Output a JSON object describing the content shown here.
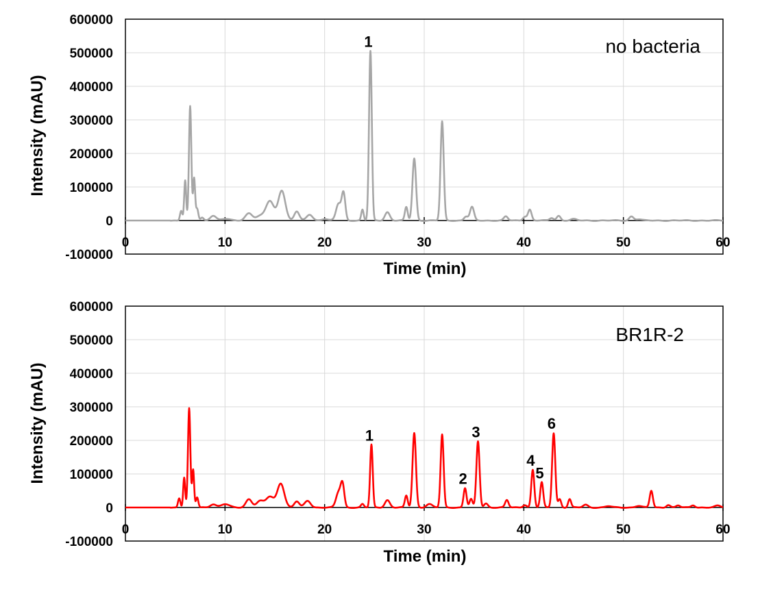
{
  "chart_data": [
    {
      "type": "line",
      "title": "no bacteria",
      "xlabel": "Time (min)",
      "ylabel": "Intensity (mAU)",
      "xlim": [
        0,
        60
      ],
      "ylim": [
        -100000,
        600000
      ],
      "x_ticks": [
        "0",
        "10",
        "20",
        "30",
        "40",
        "50",
        "60"
      ],
      "y_ticks": [
        "600000",
        "500000",
        "400000",
        "300000",
        "200000",
        "100000",
        "0",
        "-100000"
      ],
      "grid": true,
      "color": "#a6a6a6",
      "peaks": [
        [
          5.6,
          30000,
          0.12
        ],
        [
          6.0,
          120000,
          0.1
        ],
        [
          6.5,
          340000,
          0.12
        ],
        [
          6.9,
          125000,
          0.1
        ],
        [
          7.2,
          35000,
          0.12
        ],
        [
          7.7,
          8000,
          0.15
        ],
        [
          8.8,
          15000,
          0.3
        ],
        [
          10.0,
          5000,
          0.4
        ],
        [
          12.4,
          22000,
          0.35
        ],
        [
          13.5,
          12000,
          0.4
        ],
        [
          14.5,
          58000,
          0.4
        ],
        [
          15.7,
          90000,
          0.35
        ],
        [
          17.2,
          27000,
          0.25
        ],
        [
          18.5,
          18000,
          0.3
        ],
        [
          20.0,
          5000,
          0.3
        ],
        [
          21.4,
          50000,
          0.25
        ],
        [
          21.9,
          80000,
          0.18
        ],
        [
          23.8,
          32000,
          0.12
        ],
        [
          24.6,
          505000,
          0.14
        ],
        [
          26.3,
          25000,
          0.25
        ],
        [
          28.2,
          40000,
          0.14
        ],
        [
          29.0,
          185000,
          0.18
        ],
        [
          31.8,
          295000,
          0.16
        ],
        [
          34.2,
          12000,
          0.2
        ],
        [
          34.8,
          40000,
          0.2
        ],
        [
          38.2,
          12000,
          0.2
        ],
        [
          40.1,
          12000,
          0.2
        ],
        [
          40.6,
          32000,
          0.18
        ],
        [
          42.8,
          8000,
          0.2
        ],
        [
          43.5,
          14000,
          0.2
        ],
        [
          45.0,
          4000,
          0.3
        ],
        [
          50.8,
          12000,
          0.22
        ],
        [
          51.5,
          4000,
          0.3
        ]
      ],
      "annotations": [
        {
          "text": "1",
          "x": 24.6,
          "y": 505000
        }
      ]
    },
    {
      "type": "line",
      "title": "BR1R-2",
      "xlabel": "Time (min)",
      "ylabel": "Intensity (mAU)",
      "xlim": [
        0,
        60
      ],
      "ylim": [
        -100000,
        600000
      ],
      "x_ticks": [
        "0",
        "10",
        "20",
        "30",
        "40",
        "50",
        "60"
      ],
      "y_ticks": [
        "600000",
        "500000",
        "400000",
        "300000",
        "200000",
        "100000",
        "0",
        "-100000"
      ],
      "grid": true,
      "color": "#ff0000",
      "peaks": [
        [
          5.4,
          28000,
          0.12
        ],
        [
          5.9,
          90000,
          0.1
        ],
        [
          6.4,
          295000,
          0.12
        ],
        [
          6.8,
          112000,
          0.1
        ],
        [
          7.2,
          30000,
          0.12
        ],
        [
          8.8,
          10000,
          0.3
        ],
        [
          10.0,
          10000,
          0.4
        ],
        [
          12.4,
          25000,
          0.3
        ],
        [
          13.5,
          18000,
          0.35
        ],
        [
          14.5,
          32000,
          0.4
        ],
        [
          15.6,
          72000,
          0.35
        ],
        [
          17.2,
          18000,
          0.25
        ],
        [
          18.3,
          20000,
          0.3
        ],
        [
          21.4,
          45000,
          0.25
        ],
        [
          21.8,
          65000,
          0.18
        ],
        [
          23.8,
          10000,
          0.15
        ],
        [
          24.7,
          187000,
          0.13
        ],
        [
          26.3,
          22000,
          0.25
        ],
        [
          28.2,
          35000,
          0.14
        ],
        [
          29.0,
          222000,
          0.17
        ],
        [
          30.5,
          10000,
          0.3
        ],
        [
          31.8,
          217000,
          0.15
        ],
        [
          34.1,
          58000,
          0.15
        ],
        [
          34.7,
          25000,
          0.15
        ],
        [
          35.4,
          197000,
          0.16
        ],
        [
          36.2,
          12000,
          0.2
        ],
        [
          38.3,
          22000,
          0.17
        ],
        [
          40.1,
          8000,
          0.2
        ],
        [
          40.9,
          112000,
          0.15
        ],
        [
          41.8,
          75000,
          0.15
        ],
        [
          43.0,
          222000,
          0.16
        ],
        [
          43.6,
          25000,
          0.15
        ],
        [
          44.6,
          25000,
          0.15
        ],
        [
          46.2,
          8000,
          0.25
        ],
        [
          48.5,
          4000,
          0.3
        ],
        [
          51.5,
          5000,
          0.3
        ],
        [
          52.8,
          50000,
          0.16
        ],
        [
          54.5,
          8000,
          0.2
        ],
        [
          55.5,
          6000,
          0.2
        ],
        [
          57.0,
          7000,
          0.2
        ],
        [
          59.5,
          5000,
          0.3
        ]
      ],
      "annotations": [
        {
          "text": "1",
          "x": 24.7,
          "y": 187000
        },
        {
          "text": "2",
          "x": 34.1,
          "y": 58000
        },
        {
          "text": "3",
          "x": 35.4,
          "y": 197000
        },
        {
          "text": "4",
          "x": 40.9,
          "y": 112000
        },
        {
          "text": "5",
          "x": 41.8,
          "y": 75000
        },
        {
          "text": "6",
          "x": 43.0,
          "y": 222000
        }
      ]
    }
  ]
}
